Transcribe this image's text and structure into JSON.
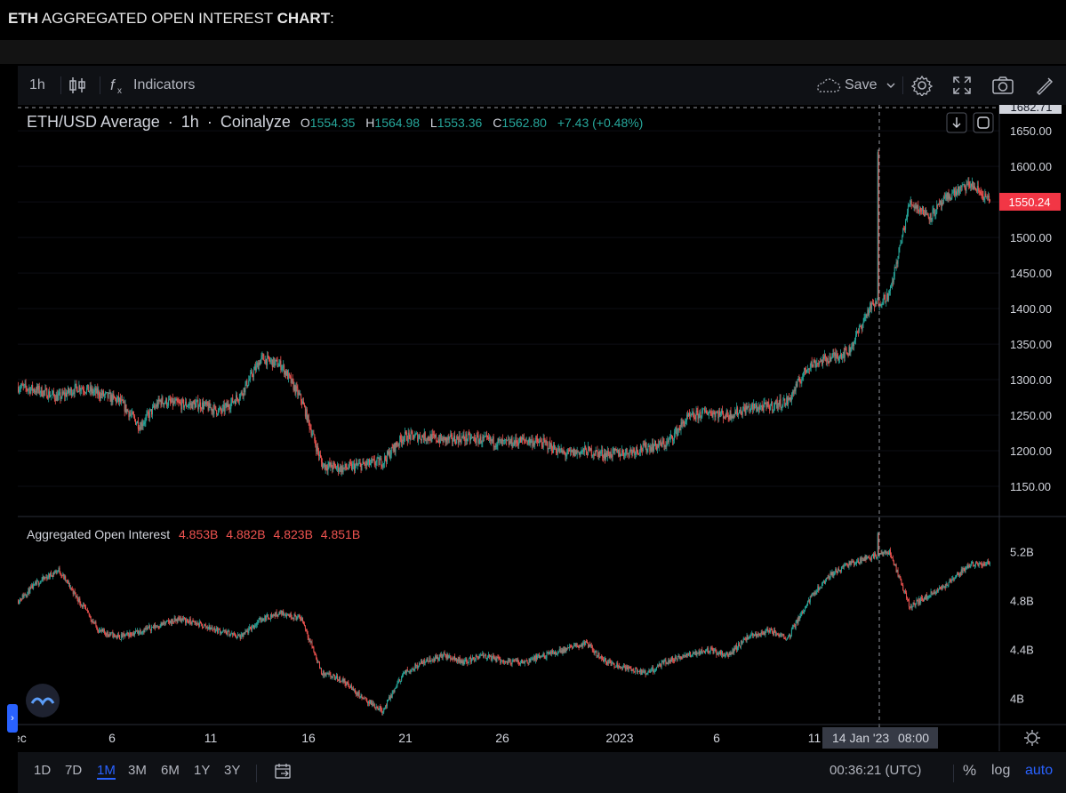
{
  "caption": {
    "part1": "ETH",
    "part2": " AGGREGATED OPEN INTEREST ",
    "part3": "CHART",
    "part4": ":"
  },
  "toolbar": {
    "interval": "1h",
    "indicators_label": "Indicators",
    "save_label": "Save",
    "icons": [
      "candles-icon",
      "fx-icon",
      "cloud-icon",
      "chevron-down-icon",
      "gear-icon",
      "fullscreen-icon",
      "camera-icon",
      "draw-icon"
    ]
  },
  "main_legend": {
    "symbol": "ETH/USD Average",
    "interval": "1h",
    "source": "Coinalyze",
    "o_label": "O",
    "o_value": "1554.35",
    "h_label": "H",
    "h_value": "1564.98",
    "l_label": "L",
    "l_value": "1553.36",
    "c_label": "C",
    "c_value": "1562.80",
    "change": "+7.43 (+0.48%)"
  },
  "oi_legend": {
    "title": "Aggregated Open Interest",
    "v1": "4.853B",
    "v2": "4.882B",
    "v3": "4.823B",
    "v4": "4.851B"
  },
  "price_axis": {
    "top_label": "1682.71",
    "ticks": [
      "1650.00",
      "1600.00",
      "1550.00",
      "1500.00",
      "1450.00",
      "1400.00",
      "1350.00",
      "1300.00",
      "1250.00",
      "1200.00",
      "1150.00"
    ],
    "current_price": "1550.24"
  },
  "oi_axis": {
    "ticks": [
      "5.2B",
      "4.8B",
      "4.4B",
      "4B"
    ]
  },
  "time_axis": {
    "ticks": [
      "ec",
      "6",
      "11",
      "16",
      "21",
      "26",
      "2023",
      "6",
      "11"
    ],
    "crosshair_date": "14 Jan '23",
    "crosshair_time": "08:00"
  },
  "bottom": {
    "ranges": [
      "1D",
      "7D",
      "1M",
      "3M",
      "6M",
      "1Y",
      "3Y"
    ],
    "active_range": "1M",
    "clock": "00:36:21 (UTC)",
    "percent": "%",
    "log": "log",
    "auto": "auto"
  },
  "colors": {
    "up": "#26a69a",
    "down": "#ef5350",
    "current_price_bg": "#f23645",
    "accent": "#2962ff"
  },
  "chart_data": [
    {
      "type": "candlestick",
      "title": "ETH/USD Average",
      "interval": "1h",
      "x_range": [
        "2022-12-01",
        "2023-01-19"
      ],
      "ylim": [
        1110,
        1682.71
      ],
      "y_ticks": [
        1150,
        1200,
        1250,
        1300,
        1350,
        1400,
        1450,
        1500,
        1550,
        1600,
        1650
      ],
      "x": [
        "2022-12-01",
        "2022-12-02",
        "2022-12-03",
        "2022-12-04",
        "2022-12-05",
        "2022-12-06",
        "2022-12-07",
        "2022-12-08",
        "2022-12-09",
        "2022-12-10",
        "2022-12-11",
        "2022-12-12",
        "2022-12-13",
        "2022-12-14",
        "2022-12-15",
        "2022-12-16",
        "2022-12-17",
        "2022-12-18",
        "2022-12-19",
        "2022-12-20",
        "2022-12-21",
        "2022-12-22",
        "2022-12-23",
        "2022-12-24",
        "2022-12-25",
        "2022-12-26",
        "2022-12-27",
        "2022-12-28",
        "2022-12-29",
        "2022-12-30",
        "2022-12-31",
        "2023-01-01",
        "2023-01-02",
        "2023-01-03",
        "2023-01-04",
        "2023-01-05",
        "2023-01-06",
        "2023-01-07",
        "2023-01-08",
        "2023-01-09",
        "2023-01-10",
        "2023-01-11",
        "2023-01-12",
        "2023-01-13",
        "2023-01-14",
        "2023-01-15",
        "2023-01-16",
        "2023-01-17",
        "2023-01-18"
      ],
      "values": [
        1290,
        1285,
        1275,
        1290,
        1280,
        1270,
        1235,
        1270,
        1265,
        1265,
        1255,
        1280,
        1330,
        1320,
        1270,
        1180,
        1175,
        1180,
        1185,
        1220,
        1220,
        1215,
        1218,
        1215,
        1210,
        1215,
        1210,
        1195,
        1200,
        1195,
        1198,
        1205,
        1210,
        1245,
        1255,
        1250,
        1260,
        1262,
        1270,
        1320,
        1330,
        1340,
        1400,
        1420,
        1550,
        1530,
        1560,
        1575,
        1550
      ]
    },
    {
      "type": "candlestick",
      "title": "Aggregated Open Interest",
      "x_range": [
        "2022-12-01",
        "2023-01-19"
      ],
      "ylim": [
        3.8,
        5.45
      ],
      "y_ticks": [
        "4B",
        "4.4B",
        "4.8B",
        "5.2B"
      ],
      "unit": "billion USD",
      "x": [
        "2022-12-01",
        "2022-12-02",
        "2022-12-03",
        "2022-12-04",
        "2022-12-05",
        "2022-12-06",
        "2022-12-07",
        "2022-12-08",
        "2022-12-09",
        "2022-12-10",
        "2022-12-11",
        "2022-12-12",
        "2022-12-13",
        "2022-12-14",
        "2022-12-15",
        "2022-12-16",
        "2022-12-17",
        "2022-12-18",
        "2022-12-19",
        "2022-12-20",
        "2022-12-21",
        "2022-12-22",
        "2022-12-23",
        "2022-12-24",
        "2022-12-25",
        "2022-12-26",
        "2022-12-27",
        "2022-12-28",
        "2022-12-29",
        "2022-12-30",
        "2022-12-31",
        "2023-01-01",
        "2023-01-02",
        "2023-01-03",
        "2023-01-04",
        "2023-01-05",
        "2023-01-06",
        "2023-01-07",
        "2023-01-08",
        "2023-01-09",
        "2023-01-10",
        "2023-01-11",
        "2023-01-12",
        "2023-01-13",
        "2023-01-14",
        "2023-01-15",
        "2023-01-16",
        "2023-01-17",
        "2023-01-18"
      ],
      "values": [
        4.8,
        4.95,
        5.05,
        4.8,
        4.55,
        4.5,
        4.55,
        4.6,
        4.65,
        4.6,
        4.55,
        4.5,
        4.65,
        4.7,
        4.65,
        4.2,
        4.15,
        4.0,
        3.9,
        4.2,
        4.3,
        4.35,
        4.3,
        4.35,
        4.3,
        4.3,
        4.35,
        4.4,
        4.45,
        4.3,
        4.25,
        4.2,
        4.3,
        4.35,
        4.4,
        4.35,
        4.5,
        4.55,
        4.5,
        4.8,
        5.0,
        5.1,
        5.15,
        5.2,
        4.75,
        4.85,
        4.95,
        5.1,
        5.1
      ]
    }
  ]
}
